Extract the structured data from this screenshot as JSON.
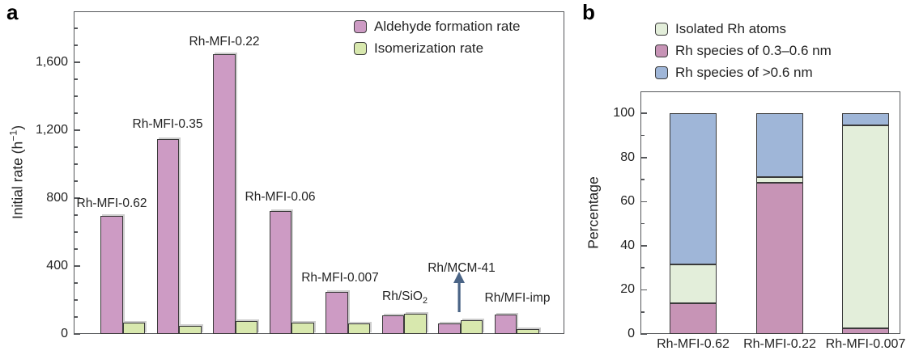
{
  "figure": {
    "panel_a_label": "a",
    "panel_b_label": "b"
  },
  "colors": {
    "aldehyde_pink": "#cd9bc4",
    "isomerization_green": "#d8e8ae",
    "species_pink": "#c794b6",
    "isolated_green": "#e3eeda",
    "species_blue": "#9fb6d8",
    "axis": "#55575a",
    "arrow": "#4a6486"
  },
  "chart_data": [
    {
      "id": "a",
      "type": "bar",
      "ylabel": {
        "pre": "Initial rate (h",
        "sup": "−1",
        "post": ")"
      },
      "ylim": [
        0,
        1900
      ],
      "grid": false,
      "legend_position": "top-right-inside",
      "yticks": [
        {
          "v": 0,
          "label": "0"
        },
        {
          "v": 400,
          "label": "400"
        },
        {
          "v": 800,
          "label": "800"
        },
        {
          "v": 1200,
          "label": "1,200"
        },
        {
          "v": 1600,
          "label": "1,600"
        }
      ],
      "minor_tick_step": 100,
      "categories": [
        "Rh-MFI-0.62",
        "Rh-MFI-0.35",
        "Rh-MFI-0.22",
        "Rh-MFI-0.06",
        "Rh-MFI-0.007",
        "Rh/SiO2",
        "Rh/MCM-41",
        "Rh/MFI-imp"
      ],
      "series": [
        {
          "name": "Aldehyde formation rate",
          "color": "#cd9bc4",
          "values": [
            695,
            1150,
            1650,
            725,
            250,
            110,
            60,
            115
          ]
        },
        {
          "name": "Isomerization rate",
          "color": "#d8e8ae",
          "values": [
            65,
            48,
            75,
            65,
            62,
            120,
            80,
            30
          ]
        }
      ],
      "legend": [
        {
          "label": "Aldehyde formation rate",
          "color": "#cd9bc4"
        },
        {
          "label": "Isomerization rate",
          "color": "#d8e8ae"
        }
      ],
      "annotations": [
        {
          "pre": "Rh-MFI-0.62"
        },
        {
          "pre": "Rh-MFI-0.35"
        },
        {
          "pre": "Rh-MFI-0.22"
        },
        {
          "pre": "Rh-MFI-0.06"
        },
        {
          "pre": "Rh-MFI-0.007"
        },
        {
          "pre": "Rh/SiO",
          "sub": "2"
        },
        {
          "pre": "Rh/MCM-41"
        },
        {
          "pre": "Rh/MFI-imp"
        }
      ],
      "arrow": {
        "points_to": "Rh/MCM-41",
        "color": "#4a6486",
        "direction": "up"
      }
    },
    {
      "id": "b",
      "type": "stacked-bar",
      "ylabel": {
        "pre": "Percentage"
      },
      "ylim": [
        0,
        110
      ],
      "grid": false,
      "legend_position": "top-outside",
      "yticks": [
        {
          "v": 0,
          "label": "0"
        },
        {
          "v": 20,
          "label": "20"
        },
        {
          "v": 40,
          "label": "40"
        },
        {
          "v": 60,
          "label": "60"
        },
        {
          "v": 80,
          "label": "80"
        },
        {
          "v": 100,
          "label": "100"
        }
      ],
      "minor_tick_step": 10,
      "categories": [
        "Rh-MFI-0.62",
        "Rh-MFI-0.22",
        "Rh-MFI-0.007"
      ],
      "series": [
        {
          "name": "Rh species of 0.3–0.6 nm",
          "color": "#c794b6",
          "values": [
            14,
            68.5,
            2.5
          ]
        },
        {
          "name": "Isolated Rh atoms",
          "color": "#e3eeda",
          "values": [
            17.5,
            2.5,
            92
          ]
        },
        {
          "name": "Rh species of >0.6 nm",
          "color": "#9fb6d8",
          "values": [
            68.5,
            29,
            5.5
          ]
        }
      ],
      "legend": [
        {
          "label": "Isolated Rh atoms",
          "color": "#e3eeda"
        },
        {
          "label": "Rh species of 0.3–0.6 nm",
          "color": "#c794b6"
        },
        {
          "label": "Rh species of >0.6 nm",
          "color": "#9fb6d8"
        }
      ]
    }
  ]
}
